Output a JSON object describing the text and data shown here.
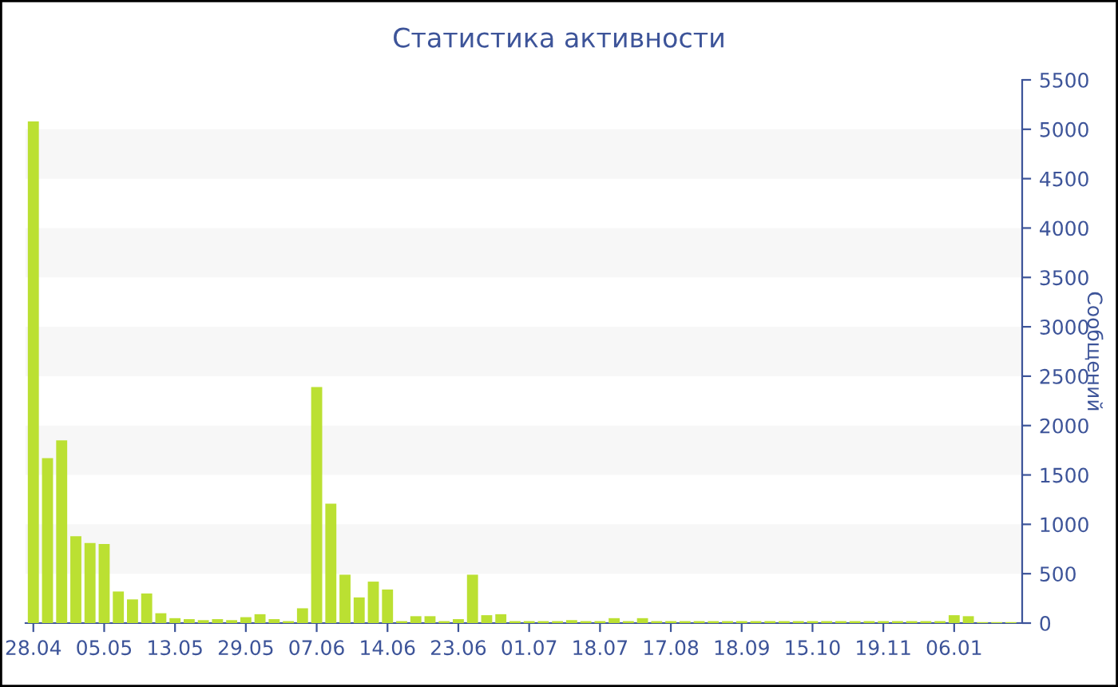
{
  "chart_data": {
    "type": "bar",
    "title": "Статистика активности",
    "ylabel": "Сообщений",
    "categories": [
      "28.04",
      null,
      null,
      null,
      null,
      "05.05",
      null,
      null,
      null,
      null,
      "13.05",
      null,
      null,
      null,
      null,
      "29.05",
      null,
      null,
      null,
      null,
      "07.06",
      null,
      null,
      null,
      null,
      "14.06",
      null,
      null,
      null,
      null,
      "23.06",
      null,
      null,
      null,
      null,
      "01.07",
      null,
      null,
      null,
      null,
      "18.07",
      null,
      null,
      null,
      null,
      "17.08",
      null,
      null,
      null,
      null,
      "18.09",
      null,
      null,
      null,
      null,
      "15.10",
      null,
      null,
      null,
      null,
      "19.11",
      null,
      null,
      null,
      null,
      "06.01",
      null,
      null,
      null,
      null
    ],
    "series": [
      {
        "color": "#bbe032",
        "values": [
          5080,
          1670,
          1850,
          880,
          810,
          800,
          320,
          240,
          300,
          100,
          50,
          40,
          30,
          40,
          30,
          60,
          90,
          40,
          20,
          150,
          2390,
          1210,
          490,
          260,
          420,
          340,
          20,
          70,
          70,
          20,
          40,
          490,
          80,
          90,
          20,
          20,
          20,
          20,
          30,
          20,
          20,
          50,
          20,
          50,
          20,
          20,
          20,
          20,
          20,
          20,
          20,
          20,
          20,
          20,
          20,
          20,
          20,
          20,
          20,
          20,
          20,
          20,
          20,
          20,
          20,
          80,
          70,
          10,
          10,
          10
        ]
      }
    ],
    "ylim": [
      0,
      5500
    ],
    "yticks": [
      0,
      500,
      1000,
      1500,
      2000,
      2500,
      3000,
      3500,
      4000,
      4500,
      5000,
      5500
    ],
    "bands": [
      {
        "axis": "y",
        "from": 500,
        "to": 1000,
        "color": "#f7f7f7"
      },
      {
        "axis": "y",
        "from": 1500,
        "to": 2000,
        "color": "#f7f7f7"
      },
      {
        "axis": "y",
        "from": 2500,
        "to": 3000,
        "color": "#f7f7f7"
      },
      {
        "axis": "y",
        "from": 3500,
        "to": 4000,
        "color": "#f7f7f7"
      },
      {
        "axis": "y",
        "from": 4500,
        "to": 5000,
        "color": "#f7f7f7"
      }
    ]
  }
}
